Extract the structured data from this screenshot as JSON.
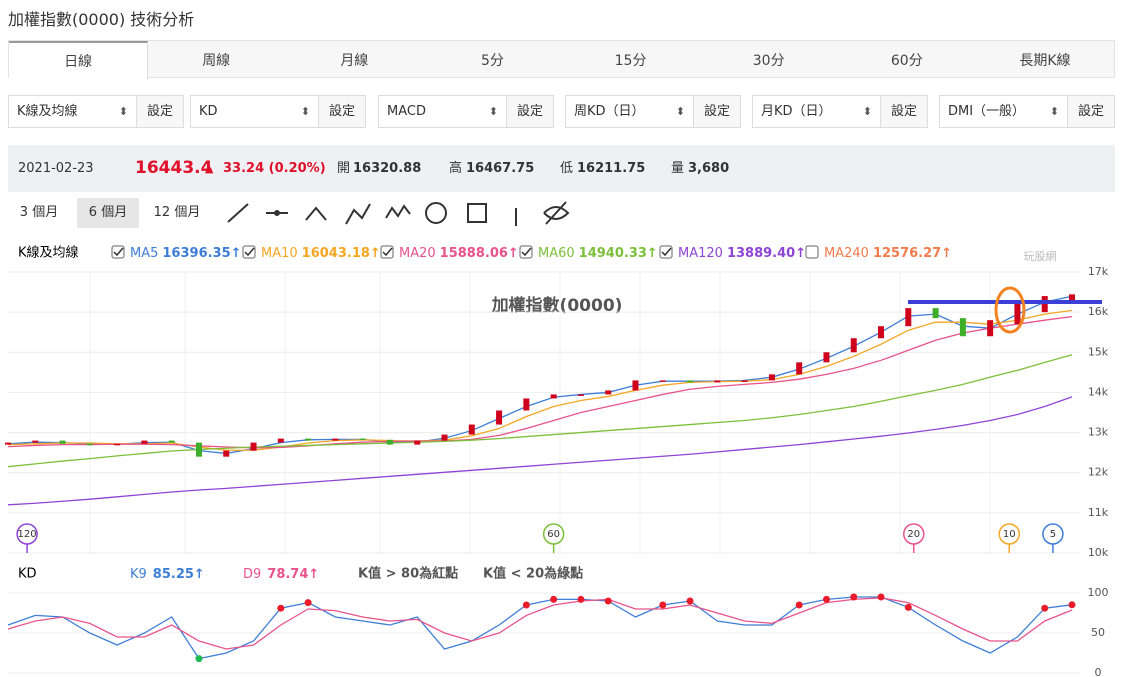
{
  "header": {
    "title": "加權指數(0000) 技術分析"
  },
  "tabs": [
    "日線",
    "周線",
    "月線",
    "5分",
    "15分",
    "30分",
    "60分",
    "長期K線"
  ],
  "active_tab": 0,
  "selects": [
    {
      "label": "K線及均線",
      "button": "設定"
    },
    {
      "label": "KD",
      "button": "設定"
    },
    {
      "label": "MACD",
      "button": "設定"
    },
    {
      "label": "周KD（日）",
      "button": "設定"
    },
    {
      "label": "月KD（日）",
      "button": "設定"
    },
    {
      "label": "DMI（一般）",
      "button": "設定"
    }
  ],
  "quote": {
    "date": "2021-02-23",
    "price": "16443.4",
    "change": "33.24 (0.20%)",
    "open_label": "開",
    "open": "16320.88",
    "high_label": "高",
    "high": "16467.75",
    "low_label": "低",
    "low": "16211.75",
    "volume_label": "量",
    "volume": "3,680"
  },
  "ranges": [
    "3 個月",
    "6 個月",
    "12 個月"
  ],
  "active_range": 1,
  "watermark": "玩股網",
  "chart_data": [
    {
      "type": "candlestick",
      "title": "加權指數(0000)",
      "legend_title": "K線及均線",
      "up_color": "#d0021b",
      "down_color": "#3fae29",
      "open": [
        12700,
        12750,
        12800,
        12720,
        12700,
        12720,
        12800,
        12750,
        12400,
        12550,
        12750,
        12850,
        12800,
        12850,
        12820,
        12700,
        12800,
        12950,
        13200,
        13550,
        13850,
        13950,
        13950,
        14050,
        14300,
        14300,
        14250,
        14300,
        14300,
        14450,
        14750,
        15000,
        15350,
        15650,
        16100,
        15850,
        15400,
        15700,
        16000,
        16300
      ],
      "close": [
        12750,
        12800,
        12720,
        12700,
        12720,
        12800,
        12750,
        12400,
        12550,
        12750,
        12850,
        12800,
        12850,
        12820,
        12700,
        12800,
        12950,
        13200,
        13550,
        13850,
        13950,
        13950,
        14050,
        14300,
        14300,
        14250,
        14300,
        14300,
        14450,
        14750,
        15000,
        15350,
        15650,
        16100,
        15850,
        15400,
        15800,
        16250,
        16400,
        16443.4
      ],
      "series": [
        {
          "name": "MA5",
          "value_label": "16396.35↑",
          "checked": true,
          "color": "#3e7ed8",
          "marker": "5",
          "marker_x": 38.3,
          "values": [
            12720,
            12760,
            12750,
            12720,
            12710,
            12750,
            12760,
            12550,
            12480,
            12600,
            12750,
            12820,
            12830,
            12830,
            12760,
            12760,
            12860,
            13050,
            13350,
            13650,
            13880,
            13950,
            14000,
            14180,
            14280,
            14280,
            14280,
            14300,
            14380,
            14580,
            14850,
            15150,
            15500,
            15900,
            15950,
            15650,
            15600,
            15950,
            16250,
            16396
          ]
        },
        {
          "name": "MA10",
          "value_label": "16043.18↑",
          "checked": true,
          "color": "#f5a623",
          "marker": "10",
          "marker_x": 36.7,
          "values": [
            12700,
            12720,
            12740,
            12740,
            12720,
            12720,
            12740,
            12640,
            12560,
            12560,
            12640,
            12740,
            12800,
            12820,
            12800,
            12790,
            12810,
            12920,
            13100,
            13400,
            13650,
            13800,
            13900,
            14050,
            14180,
            14250,
            14270,
            14280,
            14320,
            14450,
            14650,
            14900,
            15200,
            15550,
            15750,
            15750,
            15700,
            15800,
            15950,
            16043
          ]
        },
        {
          "name": "MA20",
          "value_label": "15888.06↑",
          "checked": true,
          "color": "#e8538b",
          "marker": "20",
          "marker_x": 33.2,
          "values": [
            12650,
            12680,
            12700,
            12700,
            12710,
            12710,
            12700,
            12670,
            12640,
            12620,
            12630,
            12670,
            12720,
            12760,
            12780,
            12790,
            12790,
            12830,
            12930,
            13100,
            13300,
            13500,
            13650,
            13800,
            13950,
            14080,
            14150,
            14200,
            14250,
            14330,
            14450,
            14600,
            14800,
            15050,
            15300,
            15480,
            15600,
            15700,
            15800,
            15888
          ]
        },
        {
          "name": "MA60",
          "value_label": "14940.33↑",
          "checked": true,
          "color": "#7cbf3a",
          "marker": "60",
          "marker_x": 20,
          "values": [
            12150,
            12220,
            12290,
            12350,
            12420,
            12480,
            12540,
            12580,
            12610,
            12640,
            12660,
            12680,
            12700,
            12720,
            12740,
            12760,
            12780,
            12810,
            12850,
            12900,
            12950,
            13000,
            13050,
            13100,
            13150,
            13200,
            13250,
            13300,
            13370,
            13450,
            13550,
            13650,
            13780,
            13920,
            14050,
            14200,
            14380,
            14550,
            14750,
            14940
          ]
        },
        {
          "name": "MA120",
          "value_label": "13889.40↑",
          "checked": true,
          "color": "#8e44d6",
          "marker": "120",
          "marker_x": 0.7,
          "values": [
            11200,
            11240,
            11290,
            11340,
            11400,
            11460,
            11520,
            11570,
            11610,
            11660,
            11710,
            11760,
            11810,
            11860,
            11910,
            11960,
            12010,
            12060,
            12110,
            12160,
            12210,
            12260,
            12310,
            12360,
            12410,
            12460,
            12520,
            12580,
            12640,
            12700,
            12770,
            12840,
            12910,
            12990,
            13080,
            13180,
            13300,
            13450,
            13650,
            13889
          ]
        },
        {
          "name": "MA240",
          "value_label": "12576.27↑",
          "checked": false,
          "color": "#f47c4c",
          "values": []
        }
      ],
      "ylim": [
        10000,
        17000
      ],
      "yticks": [
        {
          "value": 10000,
          "label": "10k"
        },
        {
          "value": 11000,
          "label": "11k"
        },
        {
          "value": 12000,
          "label": "12k"
        },
        {
          "value": 13000,
          "label": "13k"
        },
        {
          "value": 14000,
          "label": "14k"
        },
        {
          "value": 15000,
          "label": "15k"
        },
        {
          "value": 16000,
          "label": "16k"
        },
        {
          "value": 17000,
          "label": "17k"
        }
      ],
      "grid": true
    },
    {
      "type": "line",
      "title": "KD",
      "k_high": 80,
      "k_low": 20,
      "high_color": "#ea1c2c",
      "low_color": "#1db954",
      "series": [
        {
          "name": "K9",
          "value_label": "85.25↑",
          "color": "#3e7ed8",
          "values": [
            60,
            72,
            70,
            50,
            35,
            50,
            70,
            18,
            25,
            40,
            81,
            88,
            70,
            65,
            60,
            70,
            30,
            40,
            60,
            85,
            92,
            92,
            90,
            70,
            85,
            90,
            65,
            60,
            60,
            85,
            92,
            95,
            95,
            82,
            60,
            40,
            25,
            45,
            81,
            85.25
          ]
        },
        {
          "name": "D9",
          "value_label": "78.74↑",
          "color": "#e8538b",
          "values": [
            55,
            65,
            70,
            62,
            45,
            45,
            60,
            40,
            30,
            35,
            60,
            80,
            78,
            70,
            65,
            67,
            50,
            40,
            50,
            72,
            85,
            90,
            92,
            80,
            80,
            85,
            75,
            65,
            62,
            75,
            88,
            92,
            94,
            88,
            72,
            55,
            40,
            40,
            65,
            78.74
          ]
        }
      ],
      "notes": [
        "K值 > 80為紅點",
        "K值 < 20為綠點"
      ],
      "ylim": [
        0,
        100
      ],
      "yticks": [
        0,
        50,
        100
      ],
      "grid": true
    }
  ]
}
